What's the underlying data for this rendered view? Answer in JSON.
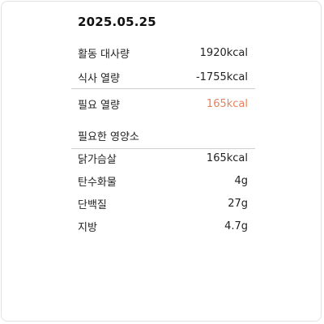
{
  "date": "2025.05.25",
  "summary": [
    {
      "label": "활동 대사량",
      "value": "1920kcal"
    },
    {
      "label": "식사 열량",
      "value": "-1755kcal"
    }
  ],
  "required": {
    "label": "필요 열량",
    "value": "165kcal",
    "color": "#e8825a"
  },
  "nutrients_title": "필요한 영양소",
  "nutrients": [
    {
      "label": "닭가슴살",
      "value": "165kcal"
    },
    {
      "label": "탄수화물",
      "value": "4g"
    },
    {
      "label": "단백질",
      "value": "27g"
    },
    {
      "label": "지방",
      "value": "4.7g"
    }
  ]
}
